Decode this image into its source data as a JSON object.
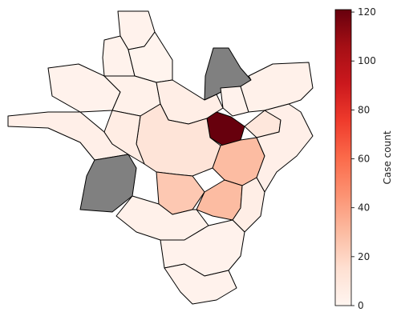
{
  "colorbar": {
    "title": "Case count",
    "ticks": [
      0,
      20,
      40,
      60,
      80,
      100,
      120
    ],
    "min": 0,
    "max": 121,
    "colors": [
      "#fff5f0",
      "#fee0d2",
      "#fcbba1",
      "#fc9272",
      "#fb6a4a",
      "#ef3b2c",
      "#cb181d",
      "#a50f15",
      "#67000d"
    ]
  },
  "map": {
    "no_data_color": "#808080",
    "regions": [
      {
        "id": "north-tip",
        "value": 2
      },
      {
        "id": "north-left",
        "value": 2
      },
      {
        "id": "north-center",
        "value": 1
      },
      {
        "id": "no-data-north",
        "value": null
      },
      {
        "id": "north-right",
        "value": 2
      },
      {
        "id": "north-east",
        "value": 3
      },
      {
        "id": "west-arm",
        "value": 4
      },
      {
        "id": "northwest",
        "value": 2
      },
      {
        "id": "northwest-inner",
        "value": 3
      },
      {
        "id": "north-inner",
        "value": 5
      },
      {
        "id": "hotspot",
        "value": 121
      },
      {
        "id": "east-inner",
        "value": 10
      },
      {
        "id": "east-large",
        "value": 30
      },
      {
        "id": "far-east",
        "value": 4
      },
      {
        "id": "center",
        "value": 12
      },
      {
        "id": "center-west",
        "value": 6
      },
      {
        "id": "no-data-west",
        "value": null
      },
      {
        "id": "south-center-left",
        "value": 25
      },
      {
        "id": "south-center-right",
        "value": 30
      },
      {
        "id": "southeast",
        "value": 5
      },
      {
        "id": "south-west",
        "value": 3
      },
      {
        "id": "south",
        "value": 2
      },
      {
        "id": "far-south",
        "value": 2
      }
    ]
  }
}
